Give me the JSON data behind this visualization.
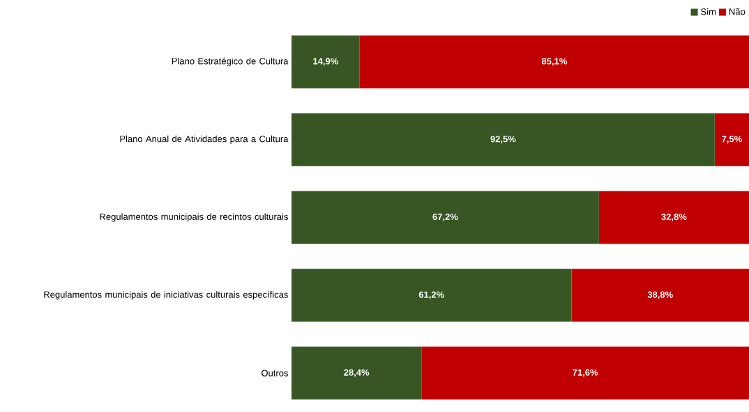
{
  "chart_data": {
    "type": "bar",
    "orientation": "horizontal",
    "stacked": true,
    "legend": "top right",
    "categories": [
      "Plano Estratégico de Cultura",
      "Plano Anual de Atividades para a Cultura",
      "Regulamentos municipais de recintos culturais",
      "Regulamentos municipais de iniciativas culturais específicas",
      "Outros"
    ],
    "series": [
      {
        "name": "Sim",
        "color": "#375623",
        "values": [
          14.9,
          92.5,
          67.2,
          61.2,
          28.4
        ],
        "value_labels": [
          "14,9%",
          "92,5%",
          "67,2%",
          "61,2%",
          "28,4%"
        ]
      },
      {
        "name": "Não",
        "color": "#c00000",
        "values": [
          85.1,
          7.5,
          32.8,
          38.8,
          71.6
        ],
        "value_labels": [
          "85,1%",
          "7,5%",
          "32,8%",
          "38,8%",
          "71,6%"
        ]
      }
    ]
  }
}
